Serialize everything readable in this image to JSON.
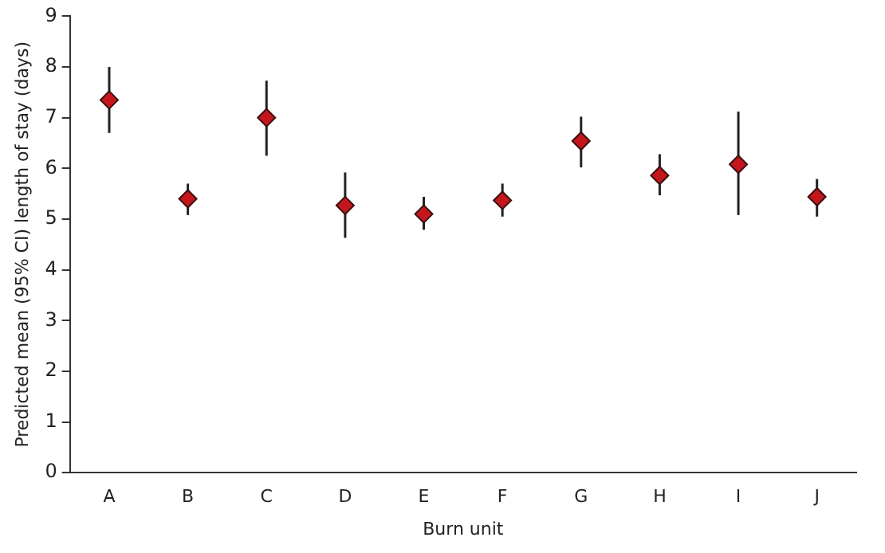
{
  "chart_data": {
    "type": "scatter",
    "xlabel": "Burn unit",
    "ylabel": "Predicted mean (95% CI) length of stay (days)",
    "categories": [
      "A",
      "B",
      "C",
      "D",
      "E",
      "F",
      "G",
      "H",
      "I",
      "J"
    ],
    "values": [
      7.35,
      5.4,
      7.0,
      5.27,
      5.1,
      5.37,
      6.54,
      5.86,
      6.08,
      5.44
    ],
    "errors": [
      [
        6.7,
        8.0
      ],
      [
        5.08,
        5.7
      ],
      [
        6.25,
        7.73
      ],
      [
        4.63,
        5.92
      ],
      [
        4.79,
        5.44
      ],
      [
        5.05,
        5.7
      ],
      [
        6.02,
        7.02
      ],
      [
        5.47,
        6.28
      ],
      [
        5.08,
        7.12
      ],
      [
        5.05,
        5.79
      ]
    ],
    "color": "#c4161c",
    "marker": "diamond",
    "ylim": [
      0,
      9
    ],
    "yticks": [
      0,
      1,
      2,
      3,
      4,
      5,
      6,
      7,
      8,
      9
    ],
    "grid": false,
    "legend": false
  }
}
